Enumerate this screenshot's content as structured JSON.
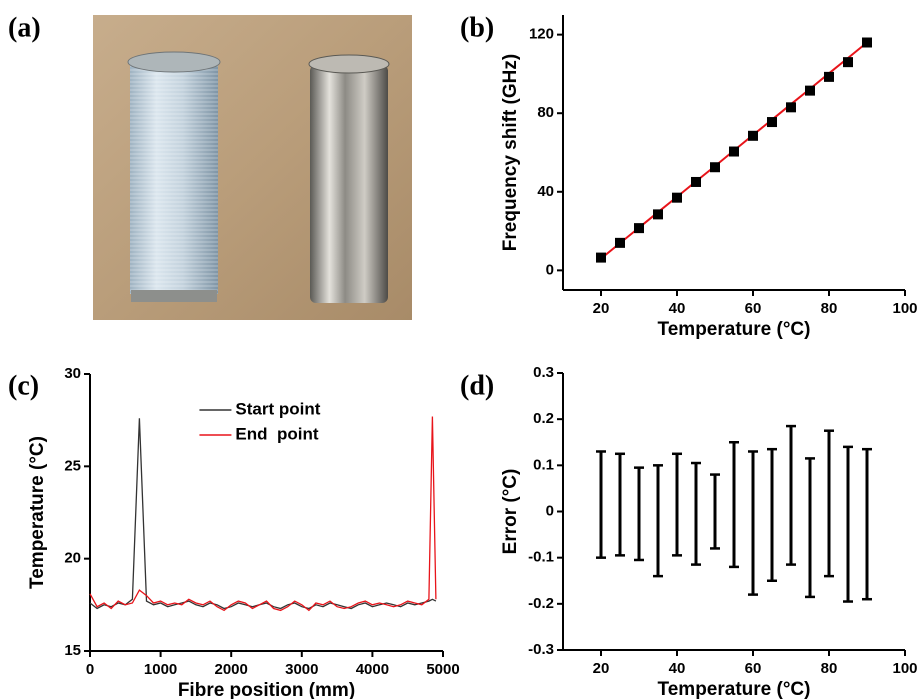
{
  "chart_data": [
    {
      "type": "image",
      "label": "(a)"
    },
    {
      "type": "scatter",
      "label": "(b)",
      "xlabel": "Temperature (°C)",
      "ylabel": "Frequency shift (GHz)",
      "x": [
        20,
        25,
        30,
        35,
        40,
        45,
        50,
        55,
        60,
        65,
        70,
        75,
        80,
        85,
        90
      ],
      "series": [
        {
          "color": "#000000",
          "mode": "markers",
          "values": [
            6.5,
            14,
            21.5,
            28.5,
            37,
            45,
            52.5,
            60.5,
            68.5,
            75.5,
            83,
            91.5,
            98.5,
            106,
            116
          ]
        },
        {
          "color": "#e8141a",
          "mode": "line",
          "values": [
            6,
            13.9,
            21.7,
            29.6,
            37.4,
            45.3,
            53.1,
            61,
            68.9,
            76.7,
            84.6,
            92.4,
            100.3,
            108.1,
            116
          ]
        }
      ],
      "xlim": [
        10,
        100
      ],
      "xticks": [
        20,
        40,
        60,
        80,
        100
      ],
      "ylim": [
        -10,
        130
      ],
      "yticks": [
        0,
        40,
        80,
        120
      ]
    },
    {
      "type": "line",
      "label": "(c)",
      "xlabel": "Fibre position (mm)",
      "ylabel": "Temperature (°C)",
      "legend": "upper center",
      "x": [
        0,
        100,
        200,
        300,
        400,
        500,
        600,
        700,
        800,
        900,
        1000,
        1100,
        1200,
        1300,
        1400,
        1500,
        1600,
        1700,
        1800,
        1900,
        2000,
        2100,
        2200,
        2300,
        2400,
        2500,
        2600,
        2700,
        2800,
        2900,
        3000,
        3100,
        3200,
        3300,
        3400,
        3500,
        3600,
        3700,
        3800,
        3900,
        4000,
        4100,
        4200,
        4300,
        4400,
        4500,
        4600,
        4700,
        4800,
        4850,
        4900
      ],
      "series": [
        {
          "name": "Start point",
          "color": "#333333",
          "values": [
            17.6,
            17.3,
            17.5,
            17.4,
            17.6,
            17.5,
            17.8,
            27.6,
            17.7,
            17.5,
            17.6,
            17.4,
            17.5,
            17.6,
            17.7,
            17.5,
            17.4,
            17.6,
            17.5,
            17.3,
            17.4,
            17.6,
            17.5,
            17.4,
            17.5,
            17.6,
            17.4,
            17.3,
            17.5,
            17.6,
            17.4,
            17.3,
            17.5,
            17.4,
            17.6,
            17.5,
            17.4,
            17.3,
            17.5,
            17.6,
            17.4,
            17.5,
            17.6,
            17.5,
            17.4,
            17.6,
            17.5,
            17.6,
            17.7,
            17.8,
            17.7
          ]
        },
        {
          "name": "End  point",
          "color": "#e8141a",
          "values": [
            18.1,
            17.4,
            17.6,
            17.3,
            17.7,
            17.5,
            17.6,
            18.3,
            18.0,
            17.6,
            17.7,
            17.5,
            17.6,
            17.5,
            17.8,
            17.6,
            17.5,
            17.7,
            17.4,
            17.2,
            17.5,
            17.7,
            17.6,
            17.3,
            17.5,
            17.7,
            17.3,
            17.2,
            17.4,
            17.7,
            17.5,
            17.2,
            17.6,
            17.5,
            17.7,
            17.4,
            17.3,
            17.4,
            17.6,
            17.7,
            17.5,
            17.6,
            17.5,
            17.4,
            17.5,
            17.7,
            17.6,
            17.5,
            17.8,
            27.7,
            17.8
          ]
        }
      ],
      "xlim": [
        0,
        5000
      ],
      "xticks": [
        0,
        1000,
        2000,
        3000,
        4000,
        5000
      ],
      "ylim": [
        15,
        30
      ],
      "yticks": [
        15,
        20,
        25,
        30
      ]
    },
    {
      "type": "errorbar",
      "label": "(d)",
      "xlabel": "Temperature (°C)",
      "ylabel": "Error (°C)",
      "color": "#000000",
      "x": [
        20,
        25,
        30,
        35,
        40,
        45,
        50,
        55,
        60,
        65,
        70,
        75,
        80,
        85,
        90
      ],
      "high": [
        0.13,
        0.125,
        0.095,
        0.1,
        0.125,
        0.105,
        0.08,
        0.15,
        0.13,
        0.135,
        0.185,
        0.115,
        0.175,
        0.14,
        0.135
      ],
      "low": [
        -0.1,
        -0.095,
        -0.105,
        -0.14,
        -0.095,
        -0.115,
        -0.08,
        -0.12,
        -0.18,
        -0.15,
        -0.115,
        -0.185,
        -0.14,
        -0.195,
        -0.19
      ],
      "xlim": [
        10,
        100
      ],
      "xticks": [
        20,
        40,
        60,
        80,
        100
      ],
      "ylim": [
        -0.3,
        0.3
      ],
      "yticks": [
        -0.3,
        -0.2,
        -0.1,
        0,
        0.1,
        0.2,
        0.3
      ]
    }
  ]
}
